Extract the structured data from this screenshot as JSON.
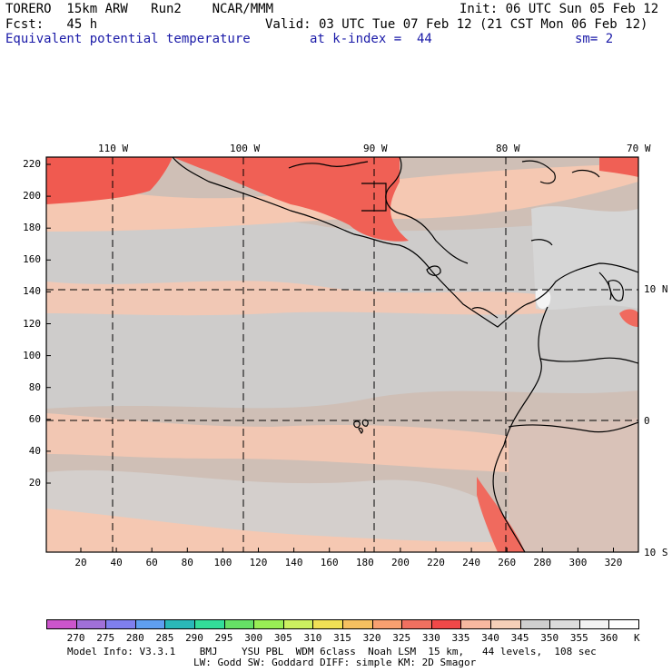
{
  "header": {
    "model": "TORERO  15km ARW   Run2    NCAR/MMM",
    "init": "Init: 06 UTC Sun 05 Feb 12",
    "fcst": "Fcst:   45 h",
    "valid": "Valid: 03 UTC Tue 07 Feb 12 (21 CST Mon 06 Feb 12)",
    "field": "Equivalent potential temperature",
    "kindex": "at k-index =  44",
    "sm": "sm= 2"
  },
  "top_lon_labels": [
    "110 W",
    "100 W",
    "90 W",
    "80 W",
    "70 W"
  ],
  "right_lat_labels": [
    "10 N",
    "0",
    "10 S"
  ],
  "y_ticks": [
    "220",
    "200",
    "180",
    "160",
    "140",
    "120",
    "100",
    "80",
    "60",
    "40",
    "20"
  ],
  "x_ticks": [
    "20",
    "40",
    "60",
    "80",
    "100",
    "120",
    "140",
    "160",
    "180",
    "200",
    "220",
    "240",
    "260",
    "280",
    "300",
    "320"
  ],
  "colorbar": {
    "labels": [
      "270",
      "275",
      "280",
      "285",
      "290",
      "295",
      "300",
      "305",
      "310",
      "315",
      "320",
      "325",
      "330",
      "335",
      "340",
      "345",
      "350",
      "355",
      "360"
    ],
    "unit": "K",
    "colors": [
      "#cc55cc",
      "#a070d8",
      "#7f7fee",
      "#5f9ff0",
      "#2ab8b8",
      "#33dd99",
      "#66e066",
      "#99ee55",
      "#ccf060",
      "#f0e055",
      "#f5c060",
      "#f7a070",
      "#f07060",
      "#f04848",
      "#f7b8a0",
      "#f5cfb8",
      "#cfcfcf",
      "#dcdcdc",
      "#f2f2f2",
      "#ffffff"
    ]
  },
  "footer": {
    "line1": "Model Info: V3.3.1    BMJ    YSU PBL  WDM 6class  Noah LSM  15 km,   44 levels,  108 sec",
    "line2": "LW: Godd SW: Goddard DIFF: simple KM: 2D Smagor"
  }
}
